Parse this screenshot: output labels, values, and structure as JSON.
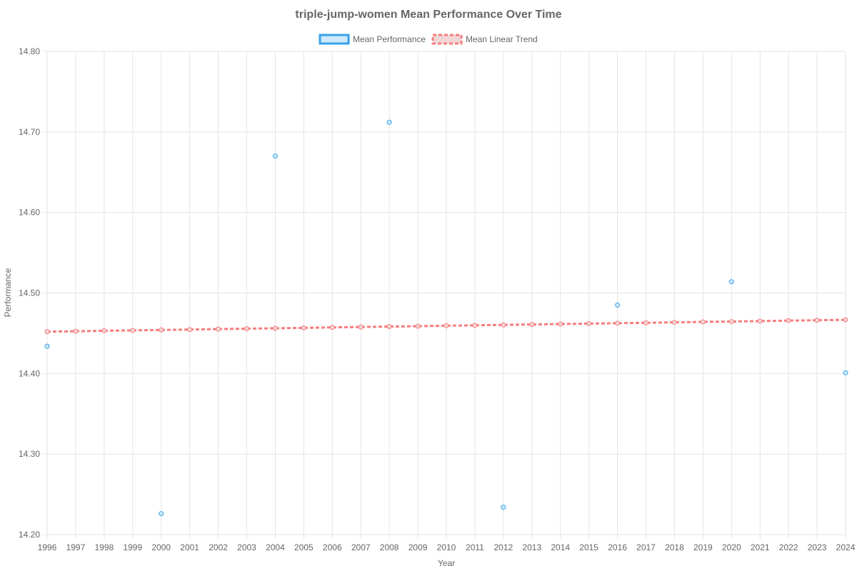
{
  "chart_data": {
    "type": "line",
    "title": "triple-jump-women Mean Performance Over Time",
    "xlabel": "Year",
    "ylabel": "Performance",
    "ylim": [
      14.2,
      14.8
    ],
    "y_ticks": [
      "14.20",
      "14.30",
      "14.40",
      "14.50",
      "14.60",
      "14.70",
      "14.80"
    ],
    "x": [
      1996,
      1997,
      1998,
      1999,
      2000,
      2001,
      2002,
      2003,
      2004,
      2005,
      2006,
      2007,
      2008,
      2009,
      2010,
      2011,
      2012,
      2013,
      2014,
      2015,
      2016,
      2017,
      2018,
      2019,
      2020,
      2021,
      2022,
      2023,
      2024
    ],
    "grid": true,
    "legend_position": "top",
    "series": [
      {
        "name": "Mean Performance",
        "color": "#36a2eb",
        "fill": "#cfe8fa",
        "style": "points",
        "points": [
          {
            "x": 1996,
            "y": 14.434
          },
          {
            "x": 2000,
            "y": 14.226
          },
          {
            "x": 2004,
            "y": 14.67
          },
          {
            "x": 2008,
            "y": 14.712
          },
          {
            "x": 2012,
            "y": 14.234
          },
          {
            "x": 2016,
            "y": 14.485
          },
          {
            "x": 2020,
            "y": 14.514
          },
          {
            "x": 2024,
            "y": 14.401
          }
        ]
      },
      {
        "name": "Mean Linear Trend",
        "color": "#f77d7d",
        "fill": "#f0d6d6",
        "style": "dashed-line",
        "values": [
          14.452,
          14.4525,
          14.4531,
          14.4536,
          14.4541,
          14.4546,
          14.4552,
          14.4557,
          14.4562,
          14.4567,
          14.4573,
          14.4578,
          14.4583,
          14.4588,
          14.4594,
          14.4599,
          14.4604,
          14.4609,
          14.4615,
          14.462,
          14.4625,
          14.463,
          14.4636,
          14.4641,
          14.4646,
          14.4651,
          14.4657,
          14.4662,
          14.4667
        ]
      }
    ]
  }
}
